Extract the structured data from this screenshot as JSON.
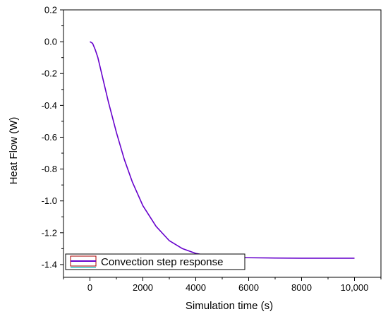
{
  "chart_data": {
    "type": "line",
    "title": "",
    "xlabel": "Simulation time (s)",
    "ylabel": "Heat Flow (W)",
    "xlim": [
      -1000,
      11000
    ],
    "ylim": [
      -1.48,
      0.2
    ],
    "x_ticks": [
      0,
      2000,
      4000,
      6000,
      8000,
      10000
    ],
    "x_tick_labels": [
      "0",
      "2000",
      "4000",
      "6000",
      "8000",
      "10,000"
    ],
    "y_ticks": [
      0.2,
      0.0,
      -0.2,
      -0.4,
      -0.6,
      -0.8,
      -1.0,
      -1.2,
      -1.4
    ],
    "y_tick_labels": [
      "0.2",
      "0.0",
      "-0.2",
      "-0.4",
      "-0.6",
      "-0.8",
      "-1.0",
      "-1.2",
      "-1.4"
    ],
    "grid": false,
    "legend_position": "bottom-left",
    "series": [
      {
        "name": "Convection step response",
        "color": "#6600cc",
        "x": [
          0,
          100,
          200,
          300,
          400,
          500,
          700,
          1000,
          1300,
          1600,
          2000,
          2500,
          3000,
          3500,
          4000,
          4500,
          5000,
          6000,
          7000,
          8000,
          9000,
          10000
        ],
        "y": [
          0.0,
          -0.01,
          -0.05,
          -0.1,
          -0.17,
          -0.24,
          -0.38,
          -0.57,
          -0.74,
          -0.88,
          -1.03,
          -1.16,
          -1.25,
          -1.3,
          -1.33,
          -1.345,
          -1.352,
          -1.357,
          -1.359,
          -1.36,
          -1.36,
          -1.36
        ]
      }
    ]
  }
}
